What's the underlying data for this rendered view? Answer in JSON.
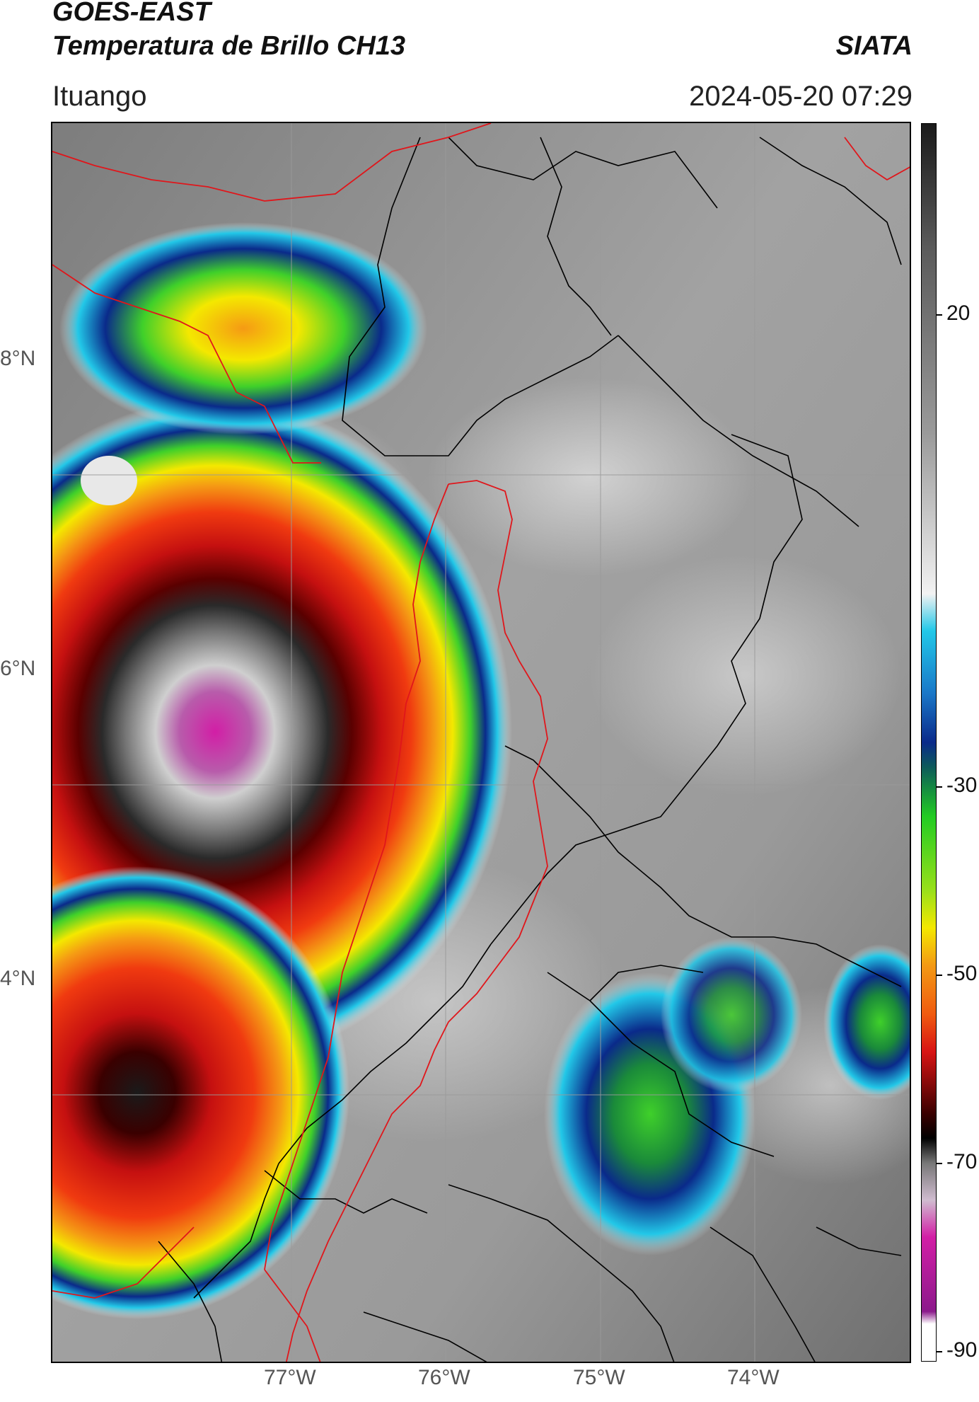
{
  "header": {
    "satellite": "GOES-EAST",
    "product": "Temperatura de Brillo CH13",
    "location": "Ituango",
    "agency": "SIATA",
    "datetime": "2024-05-20 07:29"
  },
  "map": {
    "lat_labels": [
      "8°N",
      "6°N",
      "4°N"
    ],
    "lon_labels": [
      "77°W",
      "76°W",
      "75°W",
      "74°W"
    ],
    "gridline_color": "#9a9a9a",
    "border_color": "#000000",
    "highlight_boundary_color": "#e0161b"
  },
  "colorbar": {
    "tick_labels": [
      "20",
      "-30",
      "-50",
      "-70",
      "-90"
    ],
    "colors": {
      "warm_gray_top": "#1a1a1a",
      "light_gray": "#f2f2f2",
      "cyan": "#22c8e8",
      "blue": "#0a2a8a",
      "green": "#22cc22",
      "yellow": "#f4e800",
      "orange": "#f39a14",
      "red": "#d81414",
      "dark_red": "#3a0000",
      "black": "#000000",
      "magenta": "#d21ea6",
      "purple": "#8b1a8b",
      "white": "#ffffff"
    }
  }
}
